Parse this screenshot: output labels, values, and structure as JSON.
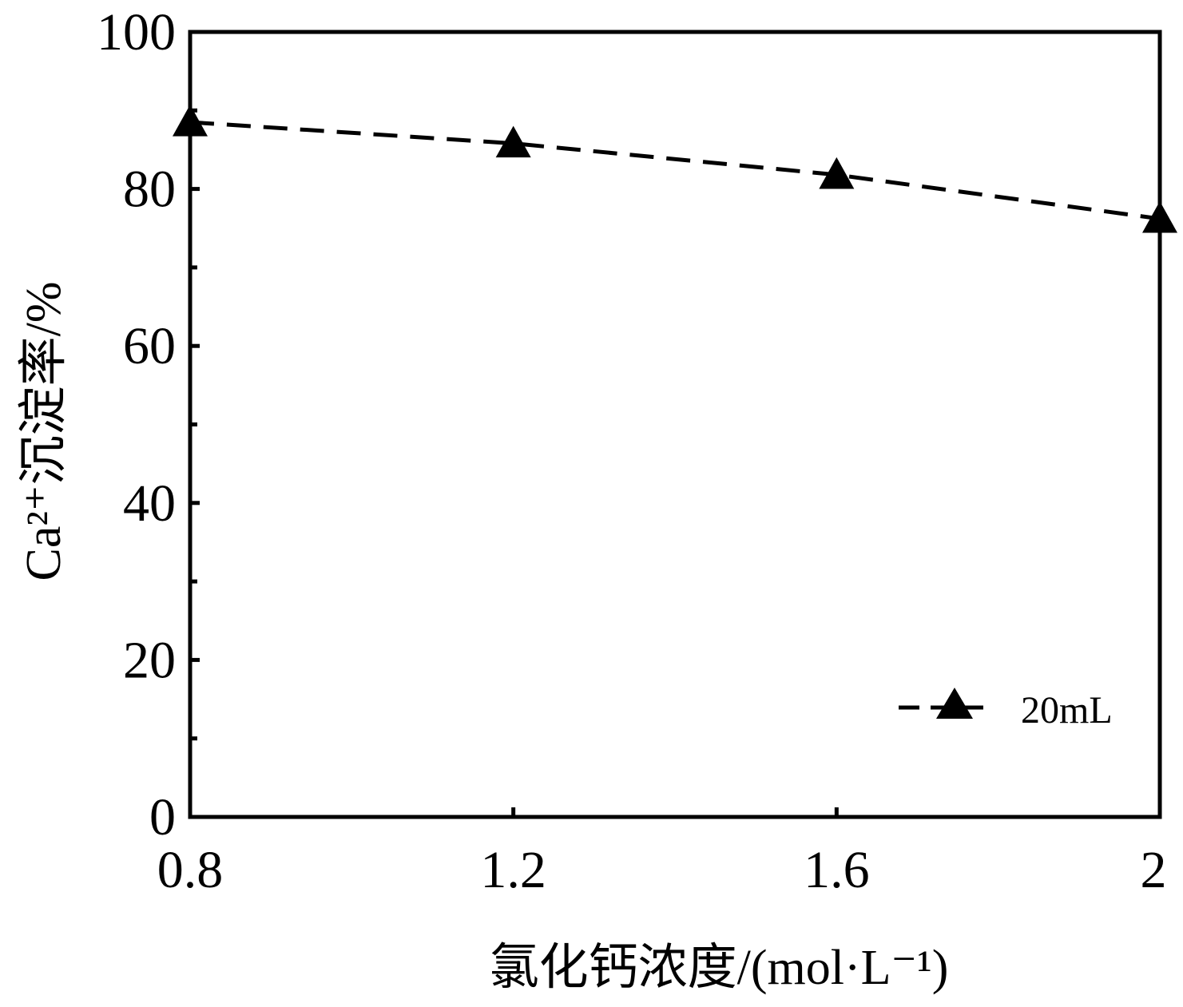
{
  "chart_data": {
    "type": "line",
    "xlabel": "氯化钙浓度/(mol·L⁻¹)",
    "ylabel": "Ca²⁺沉淀率/%",
    "xlim": [
      0.8,
      2.0
    ],
    "ylim": [
      0,
      100
    ],
    "x_ticks": [
      0.8,
      1.2,
      1.6,
      2.0
    ],
    "x_tick_labels": [
      "0.8",
      "1.2",
      "1.6",
      "2"
    ],
    "y_ticks": [
      0,
      20,
      40,
      60,
      80,
      100
    ],
    "y_tick_labels": [
      "0",
      "20",
      "40",
      "60",
      "80",
      "100"
    ],
    "grid": false,
    "legend_position": "bottom-right",
    "series": [
      {
        "name": "20mL",
        "x": [
          0.8,
          1.2,
          1.6,
          2.0
        ],
        "y": [
          88.5,
          85.8,
          81.8,
          76.2
        ],
        "line_style": "dashed",
        "marker": "triangle",
        "color": "#000000"
      }
    ]
  }
}
